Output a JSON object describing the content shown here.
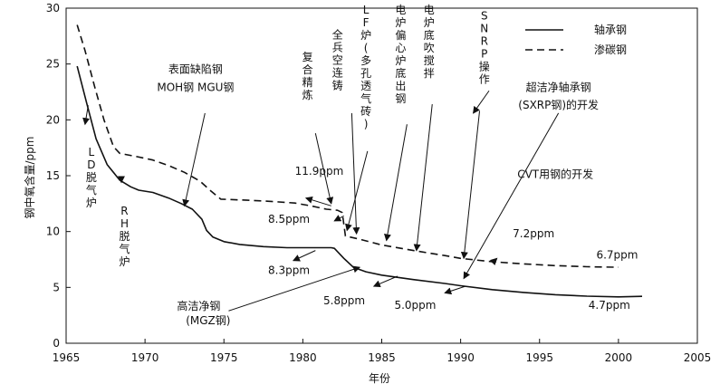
{
  "chart_data": {
    "type": "line",
    "title": "",
    "xlabel": "年份",
    "ylabel": "钢中氧含量/ppm",
    "xlim": [
      1965,
      2005
    ],
    "ylim": [
      0,
      30
    ],
    "xticks": [
      1965,
      1970,
      1975,
      1980,
      1985,
      1990,
      1995,
      2000,
      2005
    ],
    "yticks": [
      0,
      5,
      10,
      15,
      20,
      25,
      30
    ],
    "legend_position": "top-right",
    "series": [
      {
        "name": "轴承钢",
        "style": "solid",
        "points": [
          [
            1965.7,
            24.8
          ],
          [
            1966.3,
            21.5
          ],
          [
            1966.9,
            18.3
          ],
          [
            1967.6,
            16.0
          ],
          [
            1968.4,
            14.6
          ],
          [
            1969.1,
            14.0
          ],
          [
            1969.6,
            13.7
          ],
          [
            1970.5,
            13.5
          ],
          [
            1971.5,
            13.0
          ],
          [
            1972.3,
            12.5
          ],
          [
            1973.0,
            12.0
          ],
          [
            1973.6,
            11.1
          ],
          [
            1973.9,
            10.1
          ],
          [
            1974.3,
            9.5
          ],
          [
            1975.0,
            9.1
          ],
          [
            1976.0,
            8.85
          ],
          [
            1977.5,
            8.65
          ],
          [
            1979.0,
            8.55
          ],
          [
            1980.5,
            8.55
          ],
          [
            1981.8,
            8.55
          ],
          [
            1982.0,
            8.5
          ],
          [
            1982.6,
            7.6
          ],
          [
            1983.2,
            6.8
          ],
          [
            1984.0,
            6.4
          ],
          [
            1985.0,
            6.1
          ],
          [
            1987.0,
            5.7
          ],
          [
            1989.0,
            5.35
          ],
          [
            1990.0,
            5.15
          ],
          [
            1992.0,
            4.8
          ],
          [
            1994.0,
            4.55
          ],
          [
            1996.0,
            4.35
          ],
          [
            1998.0,
            4.22
          ],
          [
            2000.0,
            4.15
          ],
          [
            2001.5,
            4.2
          ]
        ]
      },
      {
        "name": "渗碳钢",
        "style": "dashed",
        "points": [
          [
            1965.7,
            28.5
          ],
          [
            1966.2,
            26.2
          ],
          [
            1966.8,
            23.0
          ],
          [
            1967.4,
            20.0
          ],
          [
            1968.0,
            17.6
          ],
          [
            1968.4,
            17.0
          ],
          [
            1969.5,
            16.7
          ],
          [
            1970.5,
            16.4
          ],
          [
            1971.5,
            15.9
          ],
          [
            1972.5,
            15.3
          ],
          [
            1973.5,
            14.5
          ],
          [
            1974.2,
            13.6
          ],
          [
            1974.8,
            12.9
          ],
          [
            1976.5,
            12.8
          ],
          [
            1978.0,
            12.7
          ],
          [
            1979.5,
            12.55
          ],
          [
            1980.5,
            12.3
          ],
          [
            1981.5,
            12.0
          ],
          [
            1982.2,
            11.9
          ],
          [
            1982.5,
            11.7
          ],
          [
            1982.7,
            9.6
          ],
          [
            1983.5,
            9.35
          ],
          [
            1985.0,
            8.8
          ],
          [
            1987.0,
            8.3
          ],
          [
            1989.0,
            7.85
          ],
          [
            1990.0,
            7.6
          ],
          [
            1992.0,
            7.3
          ],
          [
            1994.0,
            7.1
          ],
          [
            1996.0,
            6.95
          ],
          [
            1998.0,
            6.85
          ],
          [
            2000.0,
            6.8
          ]
        ]
      }
    ],
    "value_labels": [
      {
        "text": "11.9ppm",
        "x": 1979.5,
        "y": 15.1,
        "ax": 1981.8,
        "ay": 12.3,
        "tx": 1980.2,
        "ty": 13.0
      },
      {
        "text": "8.5ppm",
        "x": 1977.8,
        "y": 10.8,
        "ax": 1982.6,
        "ay": 11.4,
        "tx": 1982.0,
        "ty": 10.95
      },
      {
        "text": "8.3ppm",
        "x": 1977.8,
        "y": 6.2,
        "ax": 1980.8,
        "ay": 8.3,
        "tx": 1979.4,
        "ty": 7.4
      },
      {
        "text": "5.8ppm",
        "x": 1981.3,
        "y": 3.5,
        "ax": 1986.0,
        "ay": 6.0,
        "tx": 1984.5,
        "ty": 5.1
      },
      {
        "text": "5.0ppm",
        "x": 1985.8,
        "y": 3.1,
        "ax": 1990.3,
        "ay": 5.1,
        "tx": 1989.0,
        "ty": 4.5
      },
      {
        "text": "7.2ppm",
        "x": 1993.3,
        "y": 9.5,
        "ax": 1992.0,
        "ay": 7.2,
        "tx": 1992.3,
        "ty": 7.6
      },
      {
        "text": "6.7ppm",
        "x": 1998.6,
        "y": 7.6,
        "ax": null,
        "ay": null,
        "tx": null,
        "ty": null
      },
      {
        "text": "4.7ppm",
        "x": 1998.1,
        "y": 3.1,
        "ax": null,
        "ay": null,
        "tx": null,
        "ty": null
      }
    ],
    "annotations": [
      {
        "text": "LD脱气炉",
        "orientation": "vertical",
        "x": 1966.6,
        "y": 16.8,
        "ax": 1966.4,
        "ay": 21.3,
        "tx": 1966.2,
        "ty": 19.6
      },
      {
        "text": "RH脱气炉",
        "orientation": "vertical",
        "x": 1968.7,
        "y": 11.5,
        "ax": 1968.5,
        "ay": 14.8,
        "tx": 1968.5,
        "ty": 14.4
      },
      {
        "text": "表面缺陷钢",
        "orientation": "horizontal",
        "x": 1973.2,
        "y": 24.2,
        "ax": 1973.8,
        "ay": 20.6,
        "tx": 1972.5,
        "ty": 12.3
      },
      {
        "text": "MOH钢  MGU钢",
        "orientation": "horizontal",
        "x": 1973.2,
        "y": 22.6,
        "ax": null,
        "ay": null,
        "tx": null,
        "ty": null
      },
      {
        "text": "复合精炼",
        "orientation": "vertical",
        "x": 1980.3,
        "y": 25.3,
        "ax": 1980.8,
        "ay": 18.8,
        "tx": 1981.8,
        "ty": 12.5
      },
      {
        "text": "全兵空连铸",
        "orientation": "vertical",
        "x": 1982.2,
        "y": 27.3,
        "ax": 1983.1,
        "ay": 20.6,
        "tx": 1983.4,
        "ty": 9.8
      },
      {
        "text": "LF炉(多孔透气砖)",
        "orientation": "vertical",
        "x": 1984.0,
        "y": 29.5,
        "ax": 1984.1,
        "ay": 17.2,
        "tx": 1982.8,
        "ty": 10.1
      },
      {
        "text": "电炉偏心炉底出钢",
        "orientation": "vertical",
        "x": 1986.2,
        "y": 29.5,
        "ax": 1986.6,
        "ay": 19.6,
        "tx": 1985.3,
        "ty": 9.2
      },
      {
        "text": "电炉底吹搅拌",
        "orientation": "vertical",
        "x": 1988.0,
        "y": 29.5,
        "ax": 1988.2,
        "ay": 21.4,
        "tx": 1987.2,
        "ty": 8.3
      },
      {
        "text": "SNRP操作",
        "orientation": "vertical",
        "x": 1991.5,
        "y": 29.0,
        "ax": 1991.2,
        "ay": 20.8,
        "tx": 1990.2,
        "ty": 7.6
      },
      {
        "text": "超洁净轴承钢",
        "orientation": "horizontal",
        "x": 1996.2,
        "y": 22.6,
        "ax": 1991.8,
        "ay": 22.6,
        "tx": 1990.8,
        "ty": 20.6
      },
      {
        "text": "(SXRP钢)的开发",
        "orientation": "horizontal",
        "x": 1996.2,
        "y": 21.0,
        "ax": null,
        "ay": null,
        "tx": null,
        "ty": null
      },
      {
        "text": "CVT用钢的开发",
        "orientation": "horizontal",
        "x": 1996.0,
        "y": 14.8,
        "ax": 1996.2,
        "ay": 20.6,
        "tx": 1990.2,
        "ty": 5.8
      },
      {
        "text": "高洁净钢",
        "orientation": "horizontal",
        "x": 1973.4,
        "y": 3.0,
        "ax": 1975.3,
        "ay": 2.9,
        "tx": 1983.6,
        "ty": 6.8
      },
      {
        "text": "(MGZ钢)",
        "orientation": "horizontal",
        "x": 1974.0,
        "y": 1.7,
        "ax": null,
        "ay": null,
        "tx": null,
        "ty": null
      }
    ]
  }
}
